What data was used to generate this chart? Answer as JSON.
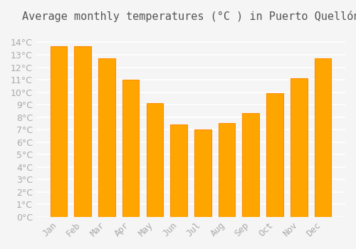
{
  "title": "Average monthly temperatures (°C ) in Puerto Quellón",
  "months": [
    "Jan",
    "Feb",
    "Mar",
    "Apr",
    "May",
    "Jun",
    "Jul",
    "Aug",
    "Sep",
    "Oct",
    "Nov",
    "Dec"
  ],
  "values": [
    13.7,
    13.7,
    12.7,
    11.0,
    9.1,
    7.4,
    7.0,
    7.5,
    8.3,
    9.9,
    11.1,
    12.7
  ],
  "bar_color": "#FFA500",
  "bar_edge_color": "#FF8C00",
  "background_color": "#f5f5f5",
  "grid_color": "#ffffff",
  "ylim": [
    0,
    15
  ],
  "yticks": [
    0,
    1,
    2,
    3,
    4,
    5,
    6,
    7,
    8,
    9,
    10,
    11,
    12,
    13,
    14
  ],
  "title_fontsize": 11,
  "tick_fontsize": 9,
  "title_color": "#555555",
  "tick_color": "#aaaaaa"
}
